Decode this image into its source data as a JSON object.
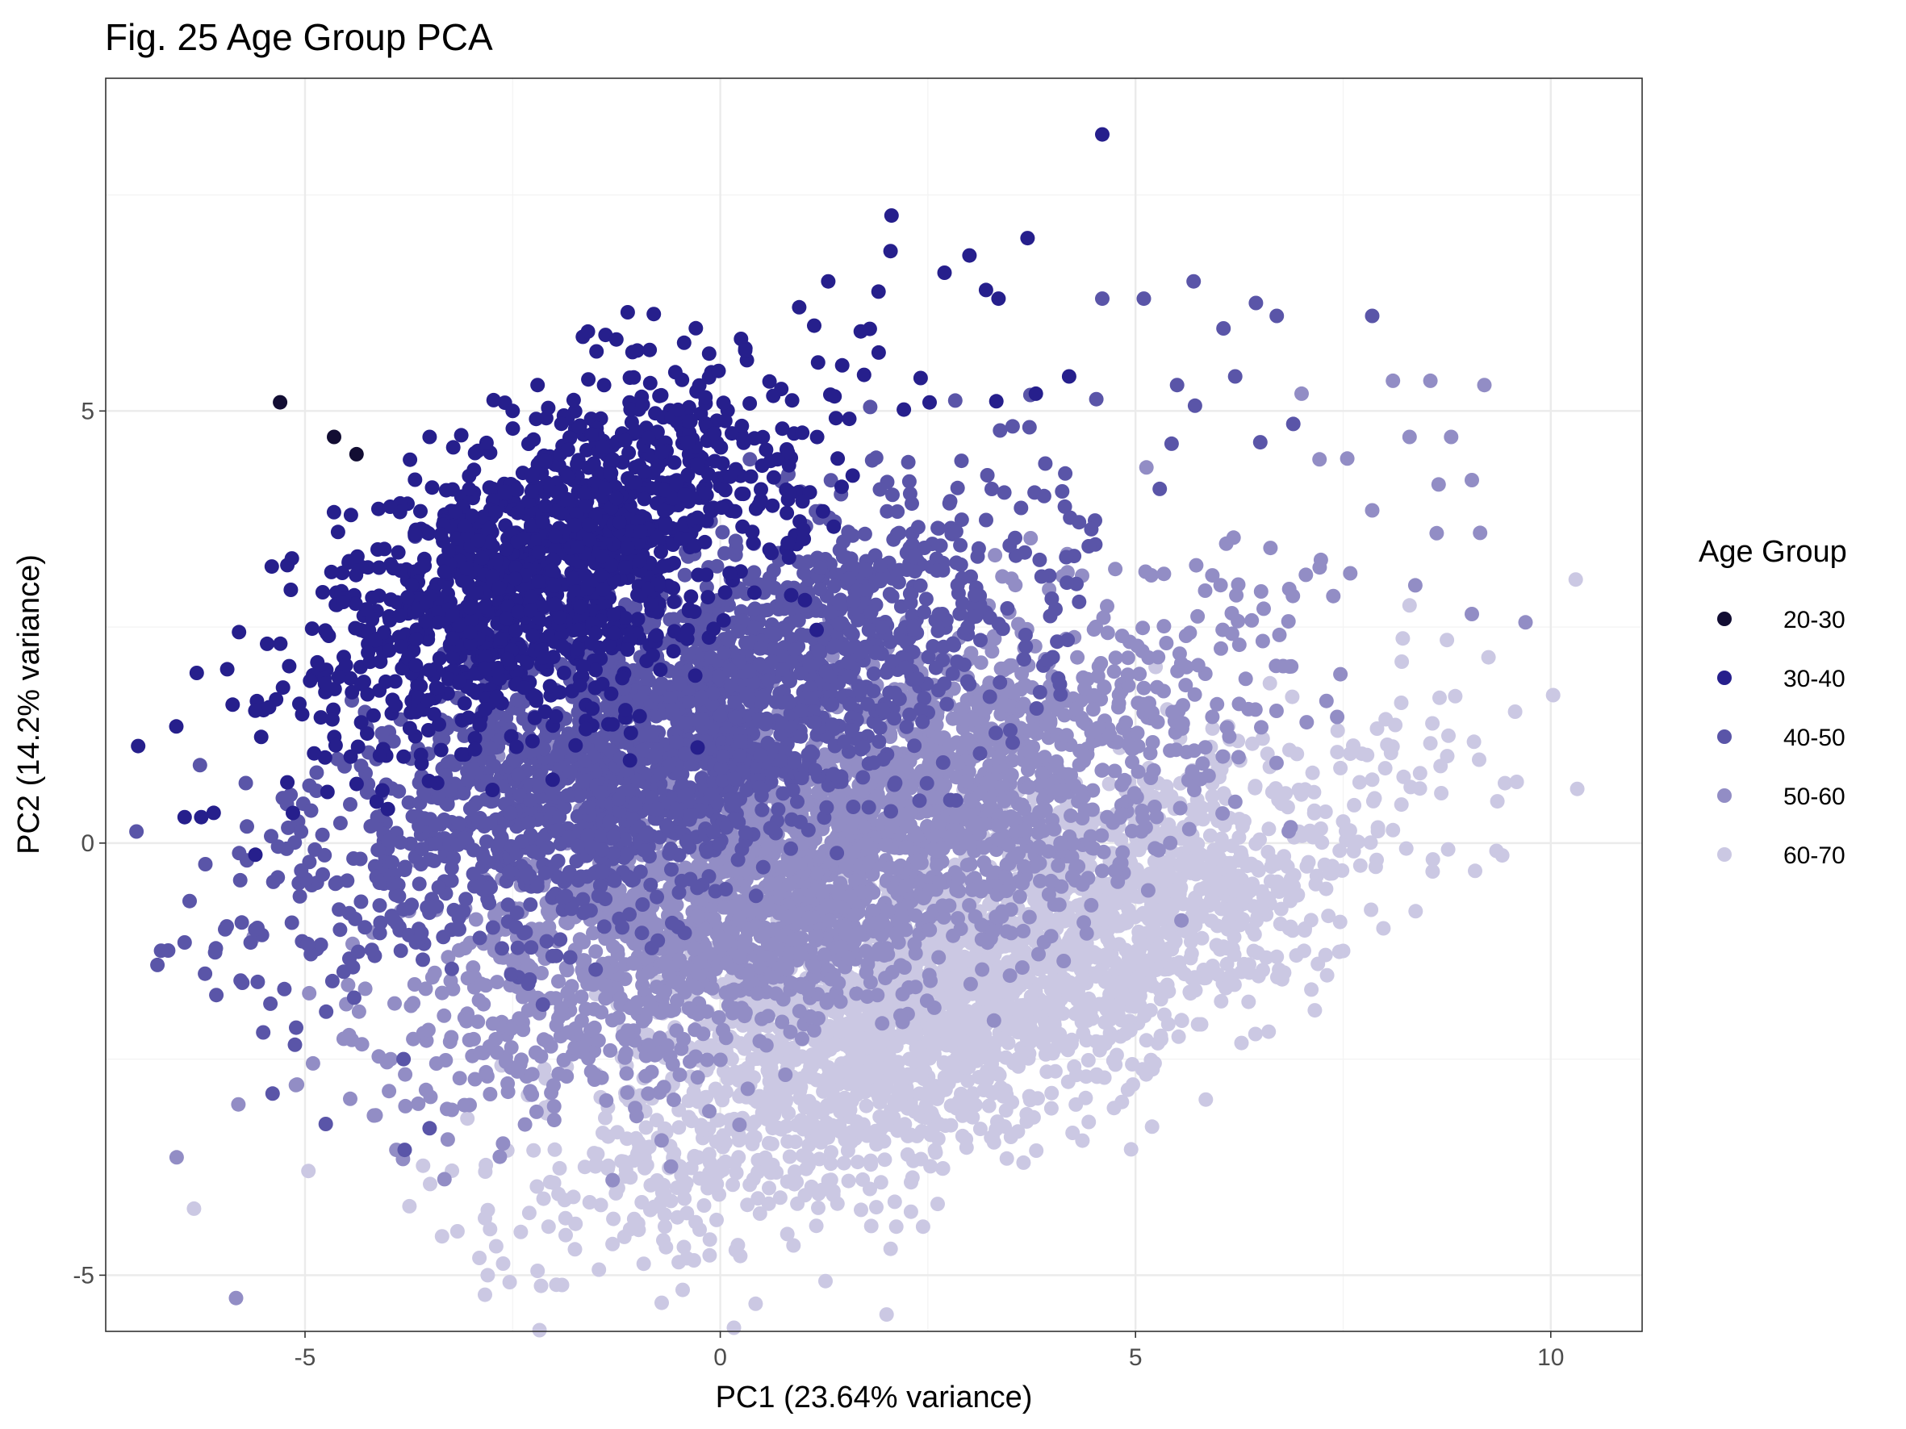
{
  "chart_data": {
    "type": "scatter",
    "title": "Fig. 25 Age Group PCA",
    "xlabel": "PC1 (23.64% variance)",
    "ylabel": "PC2 (14.2% variance)",
    "xlim": [
      -7.4,
      11.1
    ],
    "ylim": [
      -5.65,
      8.85
    ],
    "x_ticks": [
      -5,
      0,
      5,
      10
    ],
    "y_ticks": [
      -5,
      0,
      5
    ],
    "x_tick_labels": [
      "-5",
      "0",
      "5",
      "10"
    ],
    "y_tick_labels": [
      "-5",
      "0",
      "5"
    ],
    "grid": true,
    "legend": {
      "title": "Age Group",
      "position": "right",
      "entries": [
        "20-30",
        "30-40",
        "40-50",
        "50-60",
        "60-70"
      ]
    },
    "series": [
      {
        "name": "20-30",
        "color": "#120d33",
        "points": [
          [
            -5.3,
            5.1
          ],
          [
            -4.65,
            4.7
          ],
          [
            -4.38,
            4.5
          ]
        ]
      },
      {
        "name": "30-40",
        "color": "#261f8c",
        "center": [
          -2.0,
          3.2
        ],
        "spread": [
          1.4,
          0.85
        ],
        "slope": 0.42,
        "count": 1400,
        "outliers": [
          [
            4.6,
            8.2
          ],
          [
            3.7,
            7.0
          ],
          [
            2.05,
            6.85
          ],
          [
            3.0,
            6.8
          ],
          [
            2.7,
            6.6
          ],
          [
            3.2,
            6.4
          ],
          [
            3.35,
            6.3
          ],
          [
            1.3,
            6.5
          ],
          [
            0.95,
            6.2
          ],
          [
            -6.55,
            1.35
          ],
          [
            -6.45,
            0.3
          ],
          [
            -6.1,
            0.35
          ],
          [
            -6.25,
            0.3
          ],
          [
            -4.45,
            1.0
          ],
          [
            -5.4,
            3.2
          ],
          [
            -1.0,
            5.7
          ],
          [
            -2.2,
            5.3
          ],
          [
            -2.5,
            5.0
          ],
          [
            -3.5,
            4.7
          ],
          [
            3.8,
            5.2
          ],
          [
            4.2,
            5.4
          ],
          [
            1.8,
            5.95
          ],
          [
            0.3,
            5.7
          ]
        ]
      },
      {
        "name": "40-50",
        "color": "#5a55a8",
        "center": [
          -0.6,
          1.3
        ],
        "spread": [
          2.05,
          0.9
        ],
        "slope": 0.4,
        "count": 2200,
        "outliers": [
          [
            -6.45,
            -1.15
          ],
          [
            -5.7,
            -0.2
          ],
          [
            -5.6,
            -1.0
          ],
          [
            -4.75,
            -3.25
          ],
          [
            -3.8,
            -3.55
          ],
          [
            4.6,
            6.3
          ],
          [
            5.1,
            6.3
          ],
          [
            5.7,
            6.5
          ],
          [
            6.45,
            6.25
          ],
          [
            6.7,
            6.1
          ],
          [
            5.5,
            5.3
          ],
          [
            6.2,
            5.4
          ],
          [
            7.85,
            6.1
          ],
          [
            6.9,
            4.85
          ],
          [
            -3.5,
            -3.3
          ]
        ]
      },
      {
        "name": "50-60",
        "color": "#928dc5",
        "center": [
          1.3,
          -0.15
        ],
        "spread": [
          2.25,
          0.9
        ],
        "slope": 0.4,
        "count": 2600,
        "outliers": [
          [
            8.1,
            5.35
          ],
          [
            8.55,
            5.35
          ],
          [
            9.2,
            5.3
          ],
          [
            7.0,
            5.2
          ],
          [
            8.3,
            4.7
          ],
          [
            8.8,
            4.7
          ],
          [
            9.05,
            4.2
          ],
          [
            8.65,
            4.15
          ],
          [
            7.55,
            4.45
          ],
          [
            9.05,
            2.65
          ],
          [
            7.85,
            3.85
          ],
          [
            -3.9,
            -3.55
          ],
          [
            -4.15,
            -3.15
          ],
          [
            -4.35,
            -1.95
          ]
        ]
      },
      {
        "name": "60-70",
        "color": "#cbc8e3",
        "center": [
          3.1,
          -1.65
        ],
        "spread": [
          2.35,
          0.9
        ],
        "slope": 0.4,
        "count": 2600,
        "outliers": [
          [
            10.3,
            3.05
          ],
          [
            9.25,
            2.15
          ],
          [
            8.85,
            1.7
          ],
          [
            8.3,
            2.75
          ],
          [
            8.75,
            2.35
          ],
          [
            8.1,
            0.15
          ],
          [
            7.5,
            0.25
          ],
          [
            -2.8,
            -5.0
          ],
          [
            -2.2,
            -4.95
          ],
          [
            -3.35,
            -4.55
          ],
          [
            -0.5,
            -4.85
          ],
          [
            -2.9,
            -4.8
          ],
          [
            -1.75,
            -4.7
          ],
          [
            3.45,
            -3.65
          ],
          [
            4.4,
            -2.95
          ]
        ]
      }
    ]
  }
}
